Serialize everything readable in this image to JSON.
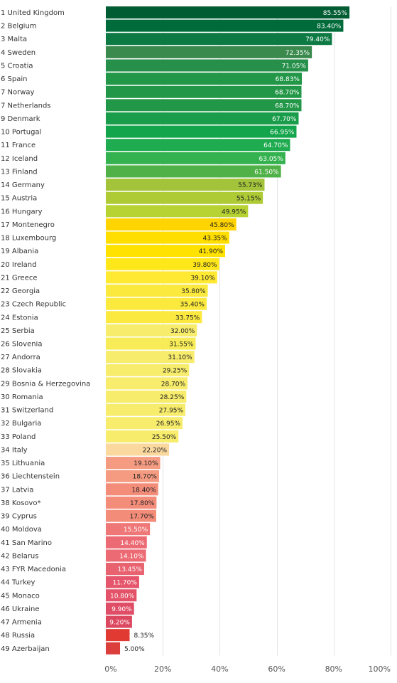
{
  "chart_data": {
    "type": "bar",
    "orientation": "horizontal",
    "title": "",
    "xlabel": "",
    "ylabel": "",
    "xlim": [
      0,
      100
    ],
    "grid": true,
    "ticks": [
      "0%",
      "20%",
      "40%",
      "60%",
      "80%",
      "100%"
    ],
    "tick_values": [
      0,
      20,
      40,
      60,
      80,
      100
    ],
    "categories": [
      "1 United Kingdom",
      "2 Belgium",
      "3 Malta",
      "4 Sweden",
      "5 Croatia",
      "6 Spain",
      "7 Norway",
      "7 Netherlands",
      "9 Denmark",
      "10 Portugal",
      "11 France",
      "12 Iceland",
      "13 Finland",
      "14 Germany",
      "15 Austria",
      "16 Hungary",
      "17 Montenegro",
      "18 Luxembourg",
      "19 Albania",
      "20 Ireland",
      "21 Greece",
      "22 Georgia",
      "23 Czech Republic",
      "24 Estonia",
      "25 Serbia",
      "26 Slovenia",
      "27 Andorra",
      "28 Slovakia",
      "29 Bosnia & Herzegovina",
      "30 Romania",
      "31 Switzerland",
      "32 Bulgaria",
      "33 Poland",
      "34 Italy",
      "35 Lithuania",
      "36 Liechtenstein",
      "37 Latvia",
      "38 Kosovo*",
      "39 Cyprus",
      "40 Moldova",
      "41 San Marino",
      "42 Belarus",
      "43 FYR Macedonia",
      "44 Turkey",
      "45 Monaco",
      "46 Ukraine",
      "47 Armenia",
      "48 Russia",
      "49 Azerbaijan"
    ],
    "values": [
      85.55,
      83.4,
      79.4,
      72.35,
      71.05,
      68.83,
      68.7,
      68.7,
      67.7,
      66.95,
      64.7,
      63.05,
      61.5,
      55.73,
      55.15,
      49.95,
      45.8,
      43.35,
      41.9,
      39.8,
      39.1,
      35.8,
      35.4,
      33.75,
      32.0,
      31.55,
      31.1,
      29.25,
      28.7,
      28.25,
      27.95,
      26.95,
      25.5,
      22.2,
      19.1,
      18.7,
      18.4,
      17.8,
      17.7,
      15.5,
      14.4,
      14.1,
      13.45,
      11.7,
      10.8,
      9.9,
      9.2,
      8.35,
      5.0
    ],
    "value_labels": [
      "85.55%",
      "83.40%",
      "79.40%",
      "72.35%",
      "71.05%",
      "68.83%",
      "68.70%",
      "68.70%",
      "67.70%",
      "66.95%",
      "64.70%",
      "63.05%",
      "61.50%",
      "55.73%",
      "55.15%",
      "49.95%",
      "45.80%",
      "43.35%",
      "41.90%",
      "39.80%",
      "39.10%",
      "35.80%",
      "35.40%",
      "33.75%",
      "32.00%",
      "31.55%",
      "31.10%",
      "29.25%",
      "28.70%",
      "28.25%",
      "27.95%",
      "26.95%",
      "25.50%",
      "22.20%",
      "19.10%",
      "18.70%",
      "18.40%",
      "17.80%",
      "17.70%",
      "15.50%",
      "14.40%",
      "14.10%",
      "13.45%",
      "11.70%",
      "10.80%",
      "9.90%",
      "9.20%",
      "8.35%",
      "5.00%"
    ],
    "colors": [
      "#005c33",
      "#006b3a",
      "#0d7a43",
      "#3a8a4e",
      "#268f4a",
      "#229748",
      "#229748",
      "#229748",
      "#1a9d4a",
      "#13a54b",
      "#1fab4f",
      "#34b24f",
      "#4fb147",
      "#a2c33a",
      "#aecb36",
      "#b7d233",
      "#ffd400",
      "#ffde00",
      "#ffe200",
      "#ffe71a",
      "#ffe933",
      "#fbe93d",
      "#fbe93d",
      "#fbe940",
      "#f7ec6b",
      "#f7ec58",
      "#f7ec6b",
      "#f7ec6b",
      "#f7ec6b",
      "#f7ec6b",
      "#f7ec6b",
      "#f7ec6b",
      "#f7ec6b",
      "#fad89e",
      "#f59b82",
      "#f59b82",
      "#f38d7a",
      "#f38d7a",
      "#f38d7a",
      "#ef7778",
      "#ec6a73",
      "#ec6a73",
      "#e86270",
      "#e5566c",
      "#e35268",
      "#e04d66",
      "#dc4860",
      "#e03a33",
      "#dc3f3b"
    ],
    "label_colors": [
      "#ffffff",
      "#ffffff",
      "#ffffff",
      "#ffffff",
      "#ffffff",
      "#ffffff",
      "#ffffff",
      "#ffffff",
      "#ffffff",
      "#ffffff",
      "#ffffff",
      "#ffffff",
      "#ffffff",
      "#222222",
      "#222222",
      "#222222",
      "#222222",
      "#222222",
      "#222222",
      "#222222",
      "#222222",
      "#222222",
      "#222222",
      "#222222",
      "#222222",
      "#222222",
      "#222222",
      "#222222",
      "#222222",
      "#222222",
      "#222222",
      "#222222",
      "#222222",
      "#222222",
      "#222222",
      "#222222",
      "#222222",
      "#222222",
      "#222222",
      "#ffffff",
      "#ffffff",
      "#ffffff",
      "#ffffff",
      "#ffffff",
      "#ffffff",
      "#ffffff",
      "#ffffff",
      "#222222",
      "#222222"
    ],
    "label_outside": [
      false,
      false,
      false,
      false,
      false,
      false,
      false,
      false,
      false,
      false,
      false,
      false,
      false,
      false,
      false,
      false,
      false,
      false,
      false,
      false,
      false,
      false,
      false,
      false,
      false,
      false,
      false,
      false,
      false,
      false,
      false,
      false,
      false,
      false,
      false,
      false,
      false,
      false,
      false,
      false,
      false,
      false,
      false,
      false,
      false,
      false,
      false,
      true,
      true
    ]
  }
}
